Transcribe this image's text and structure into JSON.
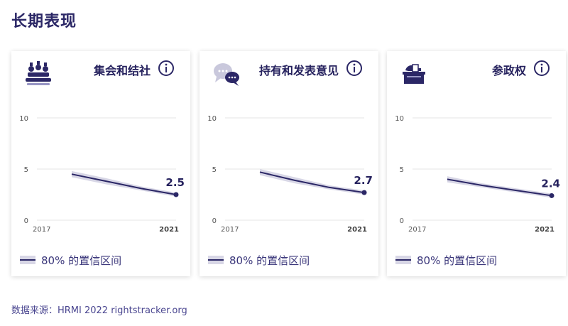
{
  "page": {
    "title": "长期表现",
    "source": "数据来源：HRMI 2022 rightstracker.org",
    "legend_label": "80% 的置信区间"
  },
  "colors": {
    "line": "#2b2766",
    "band": "#d8d7e6",
    "grid": "#e6e6e6"
  },
  "cards": [
    {
      "title": "集会和结社",
      "icon": "assembly-icon"
    },
    {
      "title": "持有和发表意见",
      "icon": "speech-bubbles-icon"
    },
    {
      "title": "参政权",
      "icon": "ballot-box-icon"
    }
  ],
  "chart_data": [
    {
      "type": "line",
      "title": "集会和结社",
      "x": [
        2018,
        2019,
        2020,
        2021
      ],
      "series": [
        {
          "values": [
            4.5,
            3.8,
            3.1,
            2.5
          ]
        }
      ],
      "band_low": [
        4.2,
        3.5,
        2.9,
        2.3
      ],
      "band_high": [
        4.8,
        4.1,
        3.3,
        2.7
      ],
      "value_label": "2.5",
      "ylim": [
        0,
        10
      ],
      "yticks": [
        "0",
        "5",
        "10"
      ],
      "xlim": [
        2017,
        2021
      ],
      "xticks": [
        "2017",
        "2021"
      ],
      "grid": true
    },
    {
      "type": "line",
      "title": "持有和发表意见",
      "x": [
        2018,
        2019,
        2020,
        2021
      ],
      "series": [
        {
          "values": [
            4.7,
            3.9,
            3.2,
            2.7
          ]
        }
      ],
      "band_low": [
        4.4,
        3.6,
        3.0,
        2.5
      ],
      "band_high": [
        5.0,
        4.2,
        3.4,
        2.9
      ],
      "value_label": "2.7",
      "ylim": [
        0,
        10
      ],
      "yticks": [
        "0",
        "5",
        "10"
      ],
      "xlim": [
        2017,
        2021
      ],
      "xticks": [
        "2017",
        "2021"
      ],
      "grid": true
    },
    {
      "type": "line",
      "title": "参政权",
      "x": [
        2018,
        2019,
        2020,
        2021
      ],
      "series": [
        {
          "values": [
            4.0,
            3.4,
            2.9,
            2.4
          ]
        }
      ],
      "band_low": [
        3.7,
        3.2,
        2.7,
        2.2
      ],
      "band_high": [
        4.3,
        3.6,
        3.1,
        2.6
      ],
      "value_label": "2.4",
      "ylim": [
        0,
        10
      ],
      "yticks": [
        "0",
        "5",
        "10"
      ],
      "xlim": [
        2017,
        2021
      ],
      "xticks": [
        "2017",
        "2021"
      ],
      "grid": true
    }
  ]
}
